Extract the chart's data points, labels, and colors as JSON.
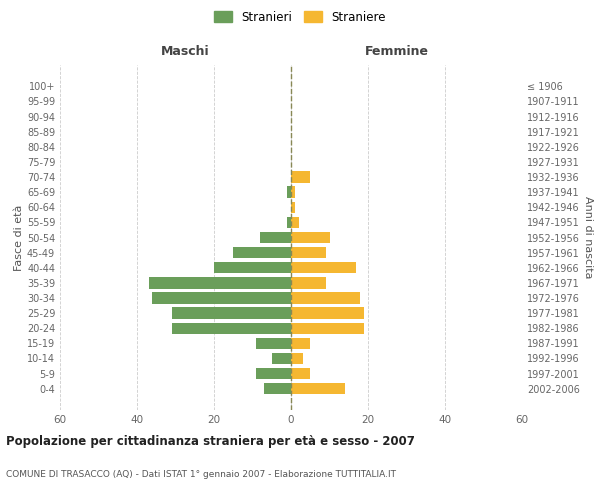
{
  "age_groups": [
    "0-4",
    "5-9",
    "10-14",
    "15-19",
    "20-24",
    "25-29",
    "30-34",
    "35-39",
    "40-44",
    "45-49",
    "50-54",
    "55-59",
    "60-64",
    "65-69",
    "70-74",
    "75-79",
    "80-84",
    "85-89",
    "90-94",
    "95-99",
    "100+"
  ],
  "birth_years": [
    "2002-2006",
    "1997-2001",
    "1992-1996",
    "1987-1991",
    "1982-1986",
    "1977-1981",
    "1972-1976",
    "1967-1971",
    "1962-1966",
    "1957-1961",
    "1952-1956",
    "1947-1951",
    "1942-1946",
    "1937-1941",
    "1932-1936",
    "1927-1931",
    "1922-1926",
    "1917-1921",
    "1912-1916",
    "1907-1911",
    "≤ 1906"
  ],
  "maschi": [
    7,
    9,
    5,
    9,
    31,
    31,
    36,
    37,
    20,
    15,
    8,
    1,
    0,
    1,
    0,
    0,
    0,
    0,
    0,
    0,
    0
  ],
  "femmine": [
    14,
    5,
    3,
    5,
    19,
    19,
    18,
    9,
    17,
    9,
    10,
    2,
    1,
    1,
    5,
    0,
    0,
    0,
    0,
    0,
    0
  ],
  "color_maschi": "#6a9e5a",
  "color_femmine": "#f5b731",
  "title": "Popolazione per cittadinanza straniera per età e sesso - 2007",
  "subtitle": "COMUNE DI TRASACCO (AQ) - Dati ISTAT 1° gennaio 2007 - Elaborazione TUTTITALIA.IT",
  "xlabel_left": "Maschi",
  "xlabel_right": "Femmine",
  "ylabel_left": "Fasce di età",
  "ylabel_right": "Anni di nascita",
  "legend_maschi": "Stranieri",
  "legend_femmine": "Straniere",
  "xlim": 60,
  "background_color": "#ffffff",
  "grid_color": "#cccccc"
}
